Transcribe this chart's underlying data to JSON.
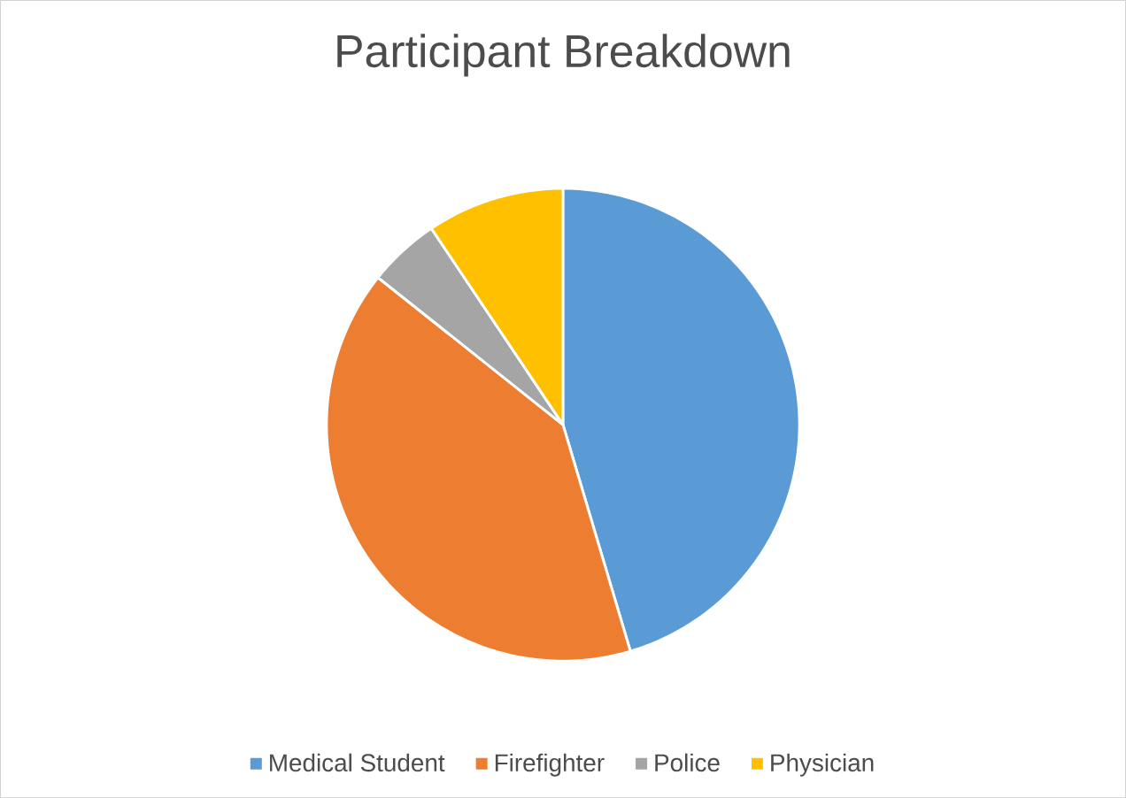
{
  "chart_data": {
    "type": "pie",
    "title": "Participant Breakdown",
    "categories": [
      "Medical Student",
      "Firefighter",
      "Police",
      "Physician"
    ],
    "values": [
      45.4,
      40.3,
      4.9,
      9.4
    ],
    "colors": [
      "#5b9bd5",
      "#ed7d31",
      "#a5a5a5",
      "#ffc000"
    ],
    "legend": "bottom"
  }
}
